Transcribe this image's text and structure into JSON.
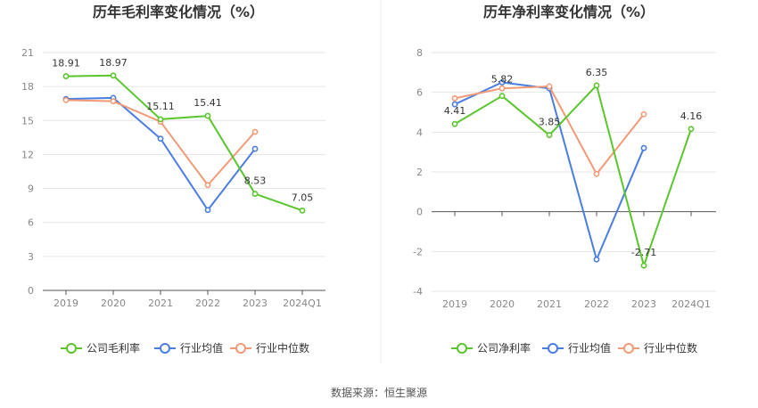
{
  "source": "数据来源：恒生聚源",
  "colors": {
    "company": "#59c62e",
    "industry_avg": "#4a7de0",
    "industry_median": "#f29a76"
  },
  "chart_data": [
    {
      "type": "line",
      "title": "历年毛利率变化情况（%）",
      "categories": [
        "2019",
        "2020",
        "2021",
        "2022",
        "2023",
        "2024Q1"
      ],
      "ylim": [
        0,
        21
      ],
      "yticks": [
        0,
        3,
        6,
        9,
        12,
        15,
        18,
        21
      ],
      "grid": true,
      "legend_position": "bottom",
      "series": [
        {
          "name": "公司毛利率",
          "role": "company",
          "values": [
            18.91,
            18.97,
            15.11,
            15.41,
            8.53,
            7.05
          ],
          "labels": [
            "18.91",
            "18.97",
            "15.11",
            "15.41",
            "8.53",
            "7.05"
          ]
        },
        {
          "name": "行业均值",
          "role": "industry_avg",
          "values": [
            16.9,
            17.0,
            13.4,
            7.1,
            12.5,
            null
          ]
        },
        {
          "name": "行业中位数",
          "role": "industry_median",
          "values": [
            16.8,
            16.7,
            14.9,
            9.3,
            14.0,
            null
          ]
        }
      ]
    },
    {
      "type": "line",
      "title": "历年净利率变化情况（%）",
      "categories": [
        "2019",
        "2020",
        "2021",
        "2022",
        "2023",
        "2024Q1"
      ],
      "ylim": [
        -4,
        8
      ],
      "yticks": [
        -4,
        -2,
        0,
        2,
        4,
        6,
        8
      ],
      "grid": true,
      "legend_position": "bottom",
      "series": [
        {
          "name": "公司净利率",
          "role": "company",
          "values": [
            4.41,
            5.82,
            3.85,
            6.35,
            -2.71,
            4.16
          ],
          "labels": [
            "4.41",
            "5.82",
            "3.85",
            "6.35",
            "-2.71",
            "4.16"
          ]
        },
        {
          "name": "行业均值",
          "role": "industry_avg",
          "values": [
            5.4,
            6.5,
            6.2,
            -2.4,
            3.2,
            null
          ]
        },
        {
          "name": "行业中位数",
          "role": "industry_median",
          "values": [
            5.7,
            6.2,
            6.3,
            1.9,
            4.9,
            null
          ]
        }
      ]
    }
  ]
}
